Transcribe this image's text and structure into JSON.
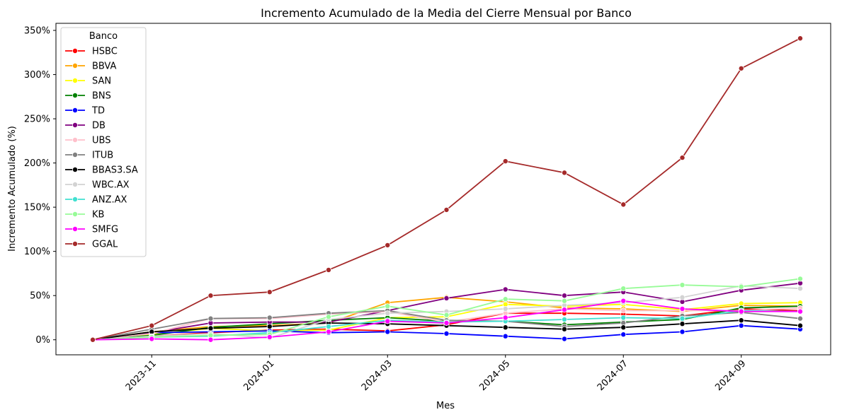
{
  "chart_data": {
    "type": "line",
    "title": "Incremento Acumulado de la Media del Cierre Mensual por Banco",
    "xlabel": "Mes",
    "ylabel": "Incremento Acumulado (%)",
    "ylim": [
      -17,
      358
    ],
    "yticks": [
      0,
      50,
      100,
      150,
      200,
      250,
      300,
      350
    ],
    "ytick_labels": [
      "0%",
      "50%",
      "100%",
      "150%",
      "200%",
      "250%",
      "300%",
      "350%"
    ],
    "xtick_labels": [
      "2023-11",
      "2024-01",
      "2024-03",
      "2024-05",
      "2024-07",
      "2024-09"
    ],
    "x": [
      "2023-10",
      "2023-11",
      "2023-12",
      "2024-01",
      "2024-02",
      "2024-03",
      "2024-04",
      "2024-05",
      "2024-06",
      "2024-07",
      "2024-08",
      "2024-09",
      "2024-10"
    ],
    "legend_title": "Banco",
    "legend_position": "upper-left",
    "grid": false,
    "series": [
      {
        "name": "HSBC",
        "color": "#ff0000",
        "values": [
          0,
          4,
          8,
          11,
          12,
          10,
          17,
          30,
          30,
          29,
          27,
          35,
          33
        ]
      },
      {
        "name": "BBVA",
        "color": "#ffa500",
        "values": [
          0,
          9,
          15,
          16,
          19,
          42,
          48,
          43,
          36,
          35,
          32,
          39,
          38
        ]
      },
      {
        "name": "SAN",
        "color": "#ffff00",
        "values": [
          0,
          6,
          13,
          10,
          11,
          25,
          26,
          40,
          38,
          40,
          34,
          41,
          42
        ]
      },
      {
        "name": "BNS",
        "color": "#008000",
        "values": [
          0,
          5,
          14,
          18,
          22,
          25,
          21,
          21,
          17,
          20,
          23,
          36,
          38
        ]
      },
      {
        "name": "TD",
        "color": "#0000ff",
        "values": [
          0,
          8,
          9,
          10,
          8,
          9,
          7,
          4,
          1,
          6,
          9,
          16,
          12
        ]
      },
      {
        "name": "DB",
        "color": "#800080",
        "values": [
          0,
          8,
          19,
          20,
          20,
          33,
          47,
          57,
          50,
          54,
          43,
          56,
          64
        ]
      },
      {
        "name": "UBS",
        "color": "#ffc0cb",
        "values": [
          0,
          7,
          24,
          24,
          29,
          32,
          20,
          30,
          35,
          33,
          33,
          33,
          36
        ]
      },
      {
        "name": "ITUB",
        "color": "#808080",
        "values": [
          0,
          12,
          24,
          25,
          30,
          33,
          22,
          21,
          15,
          19,
          27,
          31,
          24
        ]
      },
      {
        "name": "BBAS3.SA",
        "color": "#000000",
        "values": [
          0,
          9,
          13,
          15,
          19,
          18,
          16,
          14,
          12,
          14,
          18,
          22,
          16
        ]
      },
      {
        "name": "WBC.AX",
        "color": "#d3d3d3",
        "values": [
          0,
          4,
          7,
          2,
          23,
          30,
          32,
          35,
          39,
          42,
          48,
          61,
          58
        ]
      },
      {
        "name": "ANZ.AX",
        "color": "#40e0d0",
        "values": [
          0,
          3,
          4,
          8,
          15,
          22,
          20,
          21,
          23,
          25,
          24,
          33,
          32
        ]
      },
      {
        "name": "KB",
        "color": "#98fb98",
        "values": [
          0,
          3,
          5,
          6,
          26,
          38,
          28,
          46,
          44,
          58,
          62,
          60,
          69
        ]
      },
      {
        "name": "SMFG",
        "color": "#ff00ff",
        "values": [
          0,
          1,
          0,
          3,
          9,
          21,
          19,
          25,
          34,
          44,
          35,
          32,
          32
        ]
      },
      {
        "name": "GGAL",
        "color": "#a52a2a",
        "values": [
          0,
          16,
          50,
          54,
          79,
          107,
          147,
          202,
          189,
          153,
          206,
          307,
          341
        ]
      }
    ]
  }
}
